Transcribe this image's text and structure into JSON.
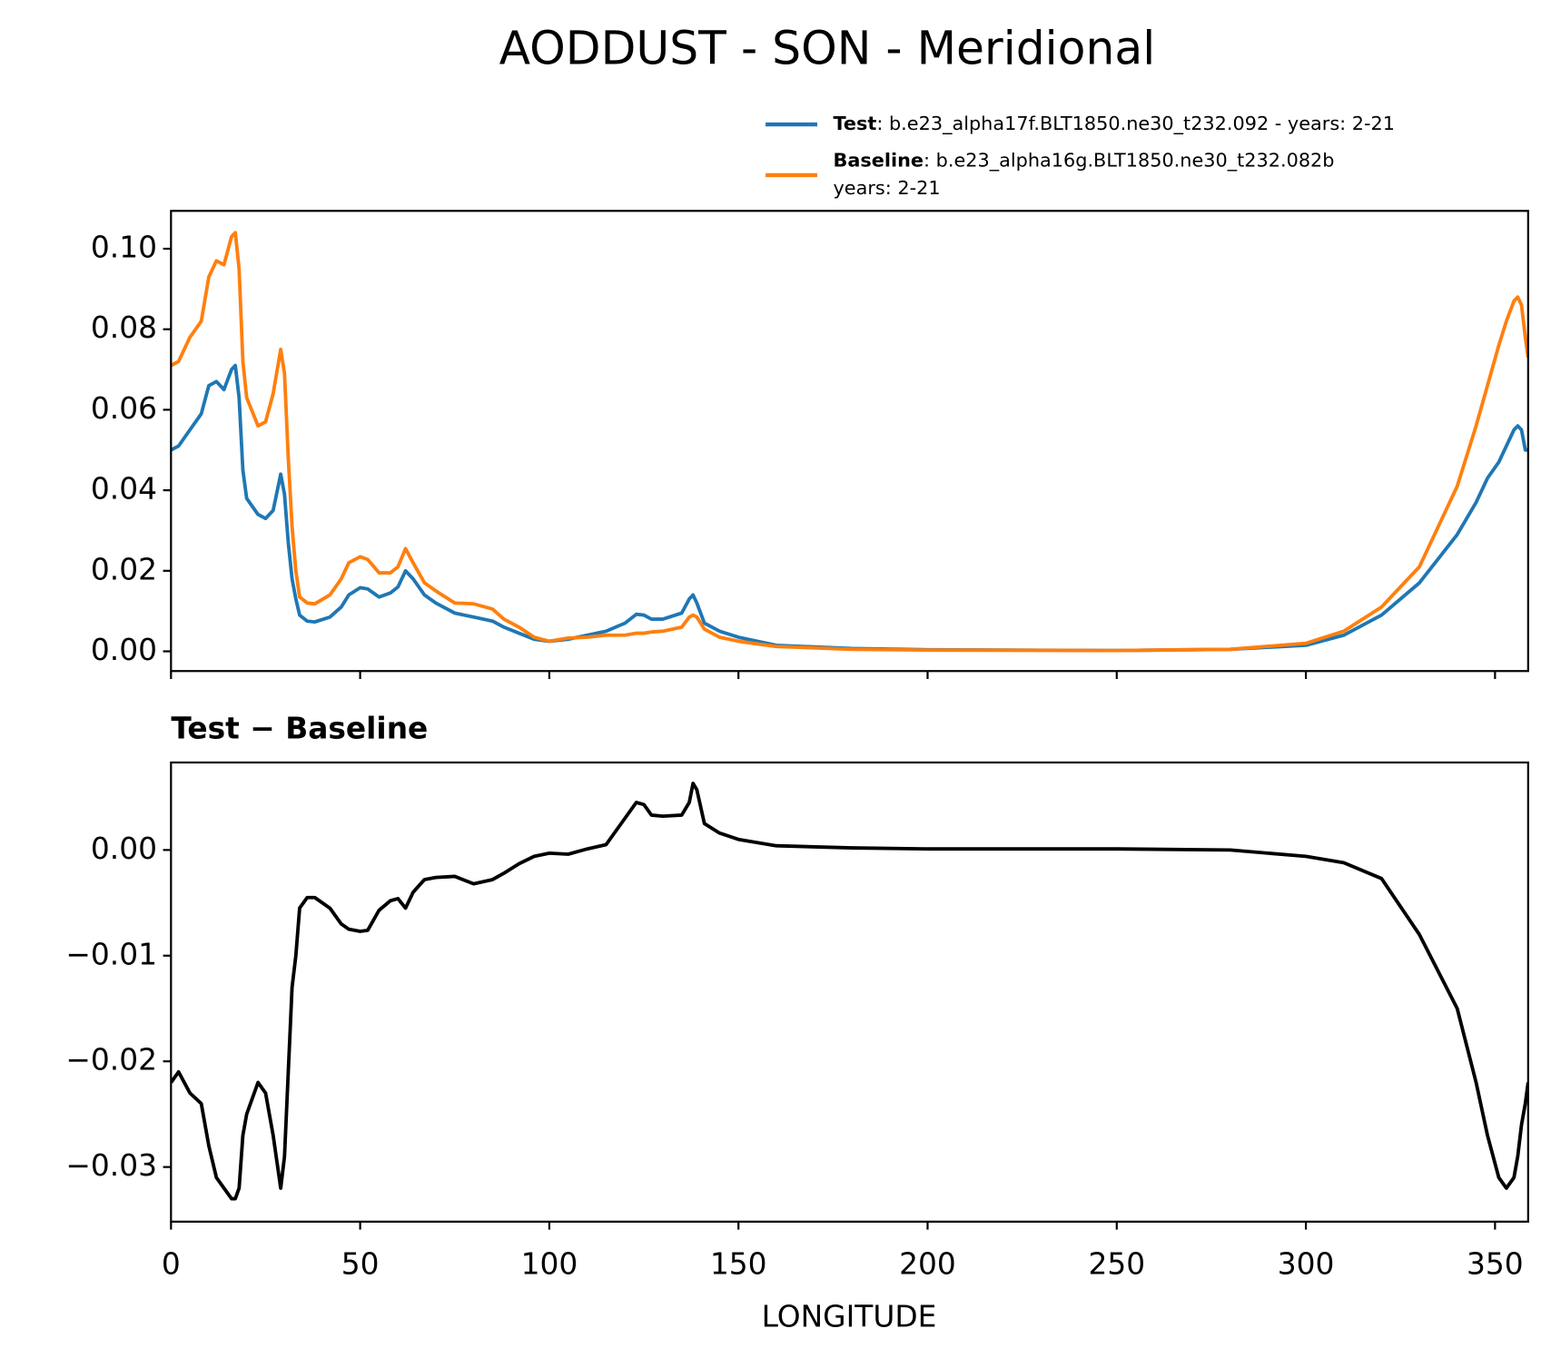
{
  "chart_data": [
    {
      "type": "line",
      "title": "AODDUST - SON - Meridional",
      "legend": "upper right",
      "x": [
        0,
        2,
        5,
        8,
        10,
        12,
        14,
        16,
        17,
        18,
        19,
        20,
        23,
        25,
        27,
        29,
        30,
        31,
        32,
        33,
        34,
        36,
        38,
        42,
        45,
        47,
        50,
        52,
        55,
        58,
        60,
        62,
        64,
        67,
        70,
        75,
        80,
        85,
        88,
        92,
        96,
        100,
        105,
        110,
        115,
        120,
        123,
        125,
        127,
        130,
        135,
        137,
        138,
        139,
        141,
        145,
        150,
        160,
        180,
        200,
        250,
        280,
        300,
        310,
        320,
        330,
        340,
        345,
        348,
        351,
        353,
        355,
        356,
        357,
        358,
        358.75
      ],
      "series": [
        {
          "name": "Test",
          "detail": [
            ": b.e23_alpha17f.BLT1850.ne30_t232.092 - years: 2-21"
          ],
          "color": "#1f77b4",
          "values": [
            0.05,
            0.051,
            0.055,
            0.059,
            0.066,
            0.067,
            0.065,
            0.07,
            0.071,
            0.063,
            0.045,
            0.038,
            0.034,
            0.033,
            0.035,
            0.044,
            0.039,
            0.027,
            0.018,
            0.013,
            0.009,
            0.0075,
            0.0073,
            0.0085,
            0.011,
            0.014,
            0.0158,
            0.0155,
            0.0135,
            0.0145,
            0.016,
            0.02,
            0.018,
            0.014,
            0.012,
            0.0095,
            0.0085,
            0.0075,
            0.006,
            0.0045,
            0.003,
            0.0025,
            0.003,
            0.004,
            0.005,
            0.007,
            0.0092,
            0.009,
            0.008,
            0.008,
            0.0095,
            0.013,
            0.014,
            0.012,
            0.007,
            0.005,
            0.0035,
            0.0015,
            0.0007,
            0.0004,
            0.0002,
            0.0005,
            0.0015,
            0.004,
            0.009,
            0.017,
            0.029,
            0.037,
            0.043,
            0.047,
            0.051,
            0.055,
            0.056,
            0.055,
            0.05,
            0.05
          ]
        },
        {
          "name": "Baseline",
          "detail": [
            ": b.e23_alpha16g.BLT1850.ne30_t232.082b",
            "years: 2-21"
          ],
          "color": "#ff7f0e",
          "values": [
            0.071,
            0.072,
            0.078,
            0.082,
            0.093,
            0.097,
            0.096,
            0.103,
            0.104,
            0.095,
            0.072,
            0.063,
            0.056,
            0.057,
            0.064,
            0.075,
            0.069,
            0.048,
            0.031,
            0.02,
            0.0135,
            0.012,
            0.0118,
            0.014,
            0.018,
            0.022,
            0.0235,
            0.0228,
            0.0195,
            0.0195,
            0.021,
            0.0255,
            0.022,
            0.017,
            0.015,
            0.012,
            0.0118,
            0.0105,
            0.008,
            0.006,
            0.0035,
            0.0025,
            0.0033,
            0.0035,
            0.004,
            0.004,
            0.0045,
            0.0045,
            0.0048,
            0.005,
            0.006,
            0.0085,
            0.009,
            0.0085,
            0.0055,
            0.0035,
            0.0025,
            0.0012,
            0.0005,
            0.0003,
            0.0002,
            0.0005,
            0.002,
            0.005,
            0.011,
            0.021,
            0.041,
            0.056,
            0.066,
            0.076,
            0.082,
            0.087,
            0.088,
            0.086,
            0.078,
            0.073
          ]
        }
      ],
      "xlim": [
        0,
        358.75
      ],
      "ylim": [
        -0.0049,
        0.1094
      ],
      "xticks": [
        0,
        50,
        100,
        150,
        200,
        250,
        300,
        350
      ],
      "yticks": [
        {
          "value": 0,
          "label": "0.00"
        },
        {
          "value": 0.02,
          "label": "0.02"
        },
        {
          "value": 0.04,
          "label": "0.04"
        },
        {
          "value": 0.06,
          "label": "0.06"
        },
        {
          "value": 0.08,
          "label": "0.08"
        },
        {
          "value": 0.1,
          "label": "0.10"
        }
      ]
    },
    {
      "type": "line",
      "title": "Test − Baseline",
      "xlabel": "LONGITUDE",
      "x": [
        0,
        2,
        5,
        8,
        10,
        12,
        14,
        16,
        17,
        18,
        19,
        20,
        23,
        25,
        27,
        29,
        30,
        31,
        32,
        33,
        34,
        36,
        38,
        42,
        45,
        47,
        50,
        52,
        55,
        58,
        60,
        62,
        64,
        67,
        70,
        75,
        80,
        85,
        88,
        92,
        96,
        100,
        105,
        110,
        115,
        120,
        123,
        125,
        127,
        130,
        135,
        137,
        138,
        139,
        141,
        145,
        150,
        160,
        180,
        200,
        250,
        280,
        300,
        310,
        320,
        330,
        340,
        345,
        348,
        351,
        353,
        355,
        356,
        357,
        358,
        358.75
      ],
      "series": [
        {
          "color": "#000000",
          "values": [
            -0.022,
            -0.021,
            -0.023,
            -0.024,
            -0.028,
            -0.031,
            -0.032,
            -0.033,
            -0.033,
            -0.032,
            -0.027,
            -0.025,
            -0.022,
            -0.023,
            -0.027,
            -0.032,
            -0.029,
            -0.021,
            -0.013,
            -0.01,
            -0.0055,
            -0.0045,
            -0.0045,
            -0.0055,
            -0.007,
            -0.0075,
            -0.0077,
            -0.0076,
            -0.0057,
            -0.0048,
            -0.0046,
            -0.0055,
            -0.004,
            -0.0028,
            -0.0026,
            -0.0025,
            -0.0032,
            -0.0028,
            -0.0022,
            -0.0013,
            -0.0006,
            -0.0003,
            -0.0004,
            0.0001,
            0.0005,
            0.003,
            0.0045,
            0.0043,
            0.0033,
            0.0032,
            0.0033,
            0.0045,
            0.0063,
            0.0057,
            0.0025,
            0.0016,
            0.001,
            0.0004,
            0.0002,
            0.0001,
            0.0001,
            0,
            -0.0006,
            -0.0012,
            -0.0027,
            -0.008,
            -0.015,
            -0.022,
            -0.027,
            -0.031,
            -0.032,
            -0.031,
            -0.029,
            -0.026,
            -0.024,
            -0.022
          ]
        }
      ],
      "xlim": [
        0,
        358.75
      ],
      "ylim": [
        -0.03517,
        0.00828
      ],
      "xticks": [
        0,
        50,
        100,
        150,
        200,
        250,
        300,
        350
      ],
      "yticks": [
        {
          "value": -0.03,
          "label": "−0.03"
        },
        {
          "value": -0.02,
          "label": "−0.02"
        },
        {
          "value": -0.01,
          "label": "−0.01"
        },
        {
          "value": 0,
          "label": "0.00"
        }
      ]
    }
  ]
}
